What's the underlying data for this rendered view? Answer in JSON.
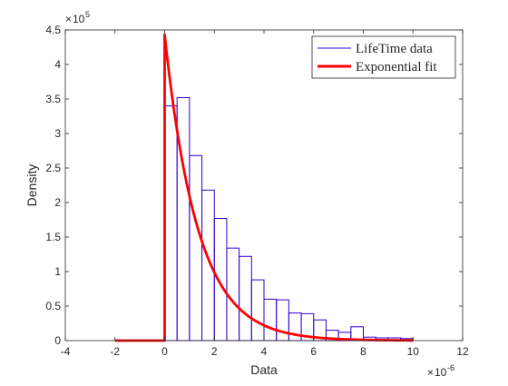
{
  "chart_data": {
    "type": "bar",
    "title": "",
    "xlabel": "Data",
    "ylabel": "Density",
    "x_exponent_label": "10",
    "x_exponent_power": "-6",
    "y_exponent_label": "10",
    "y_exponent_power": "5",
    "xlim": [
      -4,
      12
    ],
    "ylim": [
      0,
      4.5
    ],
    "x_ticks": [
      "-4",
      "-2",
      "0",
      "2",
      "4",
      "6",
      "8",
      "10",
      "12"
    ],
    "y_ticks": [
      "0",
      "0.5",
      "1",
      "1.5",
      "2",
      "2.5",
      "3",
      "3.5",
      "4",
      "4.5"
    ],
    "grid": false,
    "legend_position": "top-right",
    "legend": [
      "LifeTime data",
      "Exponential fit"
    ],
    "histogram": {
      "name": "LifeTime data",
      "color": "#3300CC",
      "bin_width": 0.5,
      "bin_edges_start": 0,
      "values": [
        3.4,
        3.52,
        2.68,
        2.18,
        1.77,
        1.34,
        1.22,
        0.88,
        0.6,
        0.59,
        0.4,
        0.39,
        0.3,
        0.15,
        0.12,
        0.2,
        0.05,
        0.04,
        0.04,
        0.03
      ]
    },
    "fit": {
      "name": "Exponential fit",
      "color": "#FF0000",
      "x_start": -2,
      "x_end": 10,
      "peak": 4.43,
      "decay_rate": 0.75
    }
  }
}
